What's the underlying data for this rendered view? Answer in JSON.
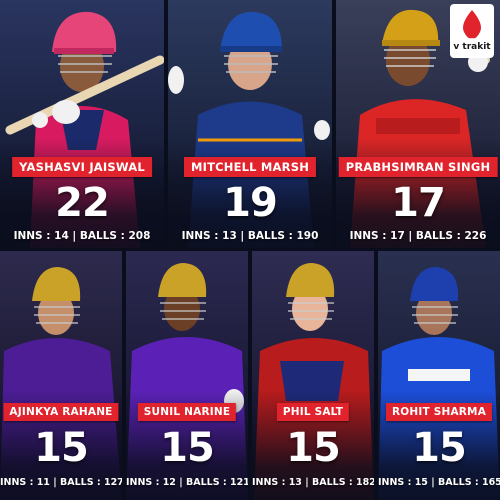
{
  "brand": {
    "name": "v trakit",
    "accent": "#e0232c"
  },
  "players": [
    {
      "name": "YASHASVI JAISWAL",
      "value": "22",
      "stats": "INNS : 14 | BALLS : 208",
      "team_color": "#d81b60"
    },
    {
      "name": "MITCHELL MARSH",
      "value": "19",
      "stats": "INNS : 13 | BALLS : 190",
      "team_color": "#1e3a8a"
    },
    {
      "name": "PRABHSIMRAN SINGH",
      "value": "17",
      "stats": "INNS : 17 | BALLS : 226",
      "team_color": "#dc2626"
    },
    {
      "name": "AJINKYA RAHANE",
      "value": "15",
      "stats": "INNS : 11 | BALLS : 127",
      "team_color": "#4c1d95"
    },
    {
      "name": "SUNIL NARINE",
      "value": "15",
      "stats": "INNS : 12 | BALLS : 121",
      "team_color": "#5b21b6"
    },
    {
      "name": "PHIL SALT",
      "value": "15",
      "stats": "INNS : 13 | BALLS : 182",
      "team_color": "#b91c1c"
    },
    {
      "name": "ROHIT SHARMA",
      "value": "15",
      "stats": "INNS : 15 | BALLS : 165",
      "team_color": "#1d4ed8"
    }
  ]
}
